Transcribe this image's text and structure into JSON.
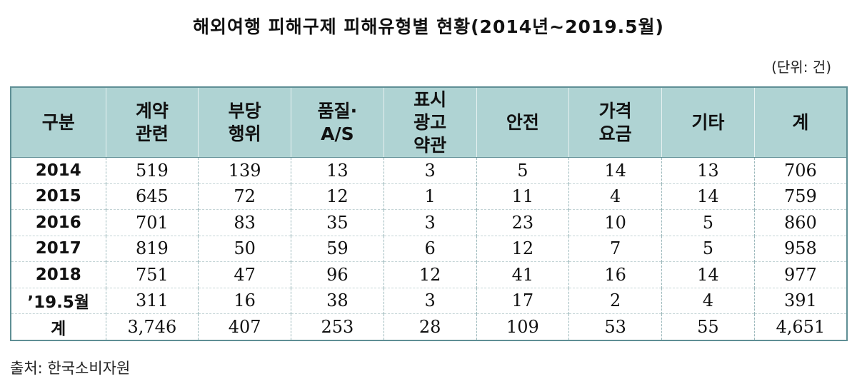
{
  "title": "해외여행 피해구제 피해유형별 현황(2014년~2019.5월)",
  "unit": "(단위: 건)",
  "headers": [
    [
      "구분"
    ],
    [
      "계약",
      "관련"
    ],
    [
      "부당",
      "행위"
    ],
    [
      "품질·",
      "A/S"
    ],
    [
      "표시",
      "광고",
      "약관"
    ],
    [
      "안전"
    ],
    [
      "가격",
      "요금"
    ],
    [
      "기타"
    ],
    [
      "계"
    ]
  ],
  "rows": [
    [
      "2014",
      "519",
      "139",
      "13",
      "3",
      "5",
      "14",
      "13",
      "706"
    ],
    [
      "2015",
      "645",
      "72",
      "12",
      "1",
      "11",
      "4",
      "14",
      "759"
    ],
    [
      "2016",
      "701",
      "83",
      "35",
      "3",
      "23",
      "10",
      "5",
      "860"
    ],
    [
      "2017",
      "819",
      "50",
      "59",
      "6",
      "12",
      "7",
      "5",
      "958"
    ],
    [
      "2018",
      "751",
      "47",
      "96",
      "12",
      "41",
      "16",
      "14",
      "977"
    ],
    [
      "’19.5월",
      "311",
      "16",
      "38",
      "3",
      "17",
      "2",
      "4",
      "391"
    ],
    [
      "계",
      "3,746",
      "407",
      "253",
      "28",
      "109",
      "53",
      "55",
      "4,651"
    ]
  ],
  "source": "출처: 한국소비자원",
  "colors": {
    "header_bg": "#afd3d3",
    "border": "#5f8f95"
  }
}
